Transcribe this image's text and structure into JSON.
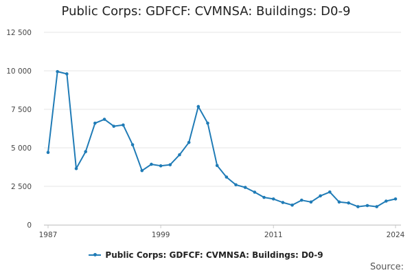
{
  "chart_data": {
    "type": "line",
    "title": "Public Corps: GDFCF: CVMNSA: Buildings: D0-9",
    "xlabel": "",
    "ylabel": "",
    "x": [
      1987,
      1988,
      1989,
      1990,
      1991,
      1992,
      1993,
      1994,
      1995,
      1996,
      1997,
      1998,
      1999,
      2000,
      2001,
      2002,
      2003,
      2004,
      2005,
      2006,
      2007,
      2008,
      2009,
      2010,
      2011,
      2012,
      2013,
      2014,
      2015,
      2016,
      2017,
      2018,
      2019,
      2020,
      2021,
      2022,
      2023,
      2024
    ],
    "series": [
      {
        "name": "Public Corps: GDFCF: CVMNSA: Buildings: D0-9",
        "color": "#1f7bb6",
        "values": [
          4700,
          9950,
          9800,
          3650,
          4750,
          6600,
          6850,
          6400,
          6480,
          5200,
          3520,
          3930,
          3830,
          3900,
          4550,
          5350,
          7680,
          6600,
          3850,
          3100,
          2600,
          2430,
          2120,
          1780,
          1680,
          1450,
          1280,
          1600,
          1480,
          1880,
          2130,
          1480,
          1420,
          1180,
          1250,
          1180,
          1540,
          1680
        ]
      }
    ],
    "xticks": [
      "1987",
      "1999",
      "2011",
      "2024"
    ],
    "yticks": [
      "0",
      "2 500",
      "5 000",
      "7 500",
      "10 000",
      "12 500"
    ],
    "ylim": [
      0,
      12500
    ],
    "xlim": [
      1987,
      2024
    ],
    "grid": true,
    "legend_position": "bottom"
  },
  "source_label": "Source:"
}
